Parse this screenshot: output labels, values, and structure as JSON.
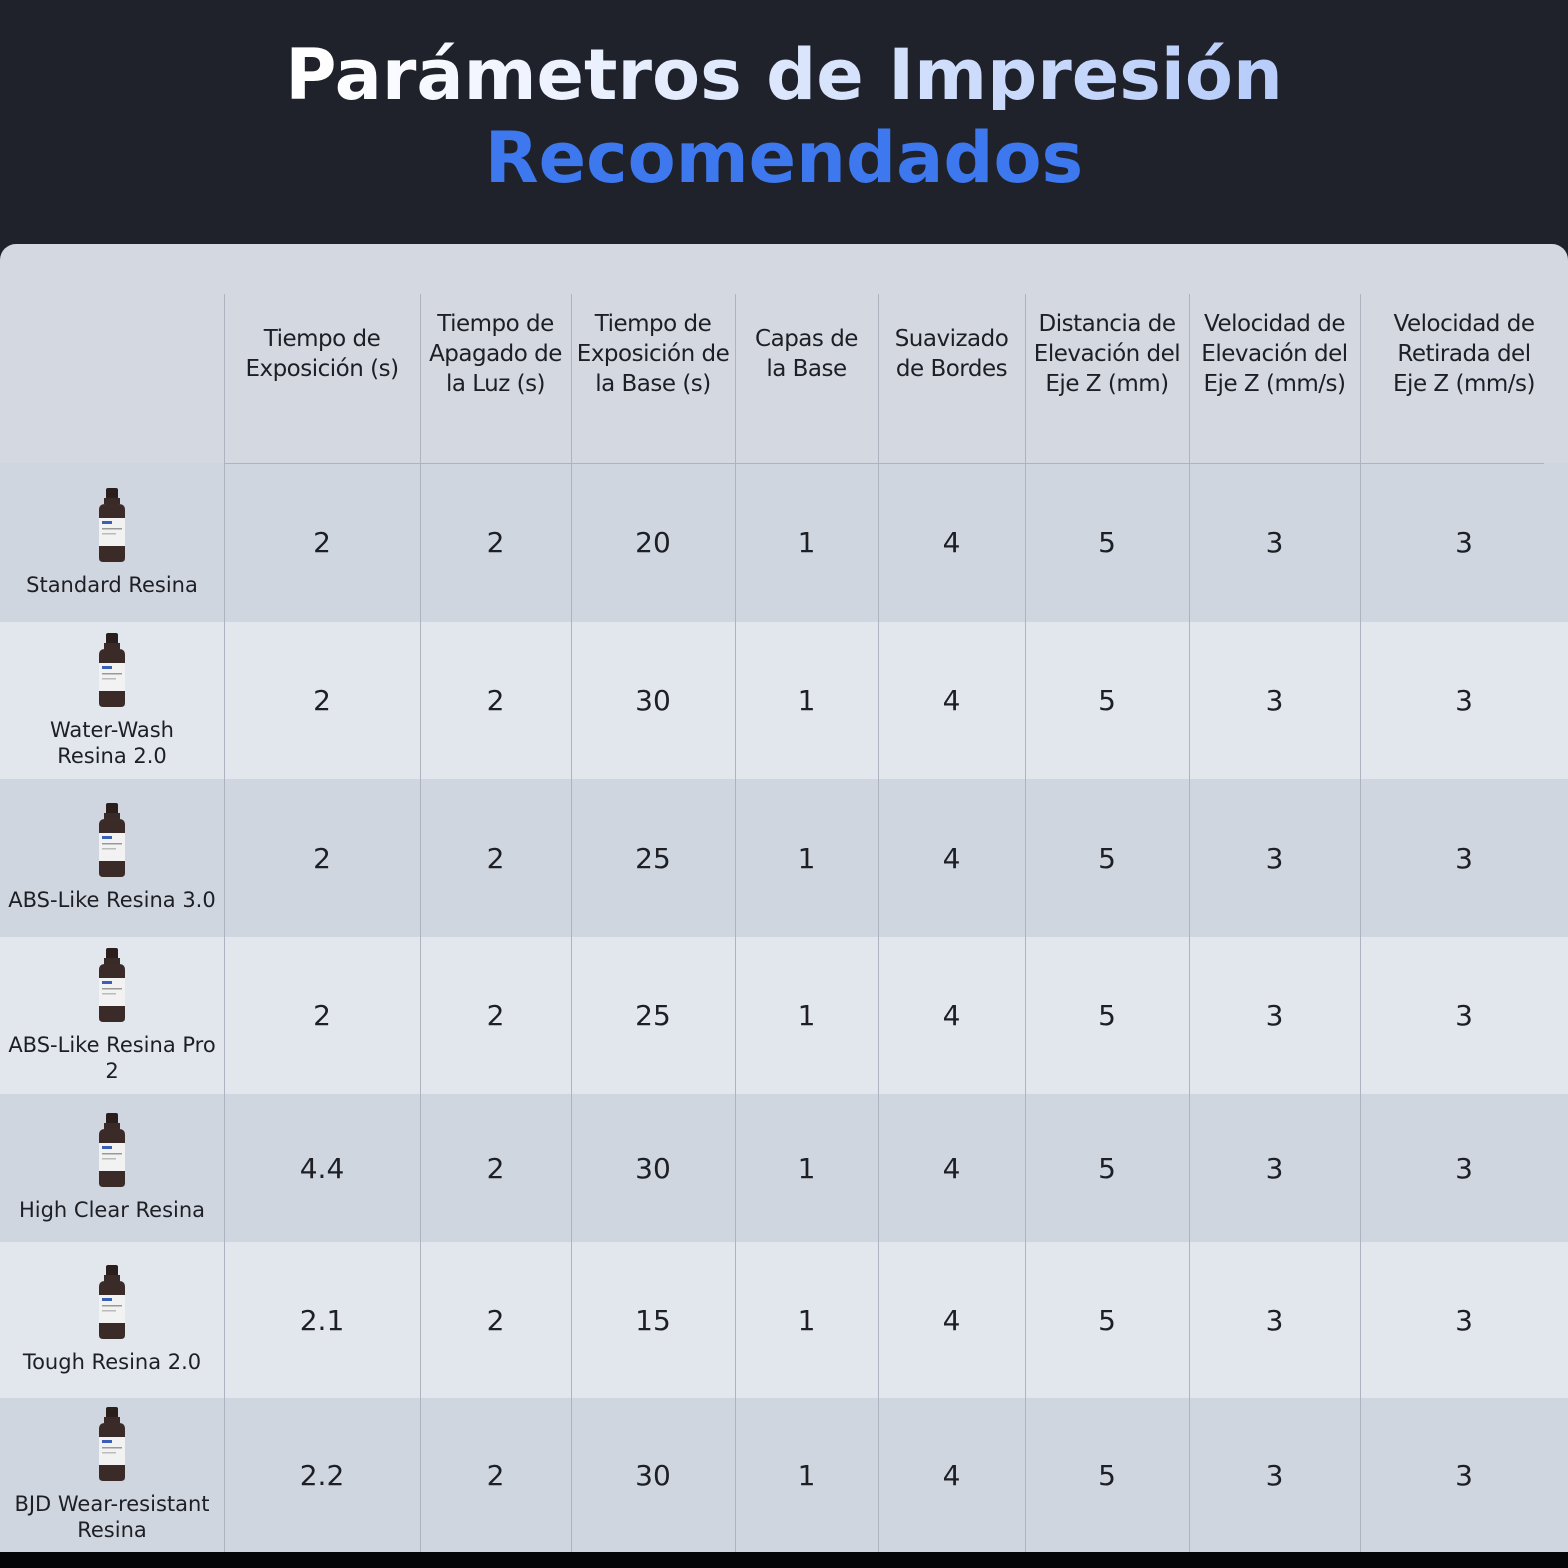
{
  "header": {
    "title": [
      "Parámetros de Impresión",
      "Recomendados"
    ]
  },
  "table": {
    "columns": [
      [
        "Tiempo de",
        "Exposición (s)"
      ],
      [
        "Tiempo de",
        "Apagado de",
        "la Luz (s)"
      ],
      [
        "Tiempo de",
        "Exposición de",
        "la Base (s)"
      ],
      [
        "Capas de",
        "la Base"
      ],
      [
        "Suavizado",
        "de Bordes"
      ],
      [
        "Distancia de",
        "Elevación del",
        "Eje Z (mm)"
      ],
      [
        "Velocidad de",
        "Elevación del",
        "Eje Z (mm/s)"
      ],
      [
        "Velocidad de",
        "Retirada del",
        "Eje Z (mm/s)"
      ]
    ],
    "rows": [
      {
        "name": [
          "Standard Resina"
        ],
        "values": [
          2,
          2,
          20,
          1,
          4,
          5,
          3,
          3
        ]
      },
      {
        "name": [
          "Water-Wash",
          "Resina 2.0"
        ],
        "values": [
          2,
          2,
          30,
          1,
          4,
          5,
          3,
          3
        ]
      },
      {
        "name": [
          "ABS-Like Resina 3.0"
        ],
        "values": [
          2,
          2,
          25,
          1,
          4,
          5,
          3,
          3
        ]
      },
      {
        "name": [
          "ABS-Like Resina Pro 2"
        ],
        "values": [
          2,
          2,
          25,
          1,
          4,
          5,
          3,
          3
        ]
      },
      {
        "name": [
          "High Clear Resina"
        ],
        "values": [
          4.4,
          2,
          30,
          1,
          4,
          5,
          3,
          3
        ]
      },
      {
        "name": [
          "Tough Resina 2.0"
        ],
        "values": [
          2.1,
          2,
          15,
          1,
          4,
          5,
          3,
          3
        ]
      },
      {
        "name": [
          "BJD Wear-resistant",
          "Resina"
        ],
        "values": [
          2.2,
          2,
          30,
          1,
          4,
          5,
          3,
          3
        ]
      }
    ]
  }
}
